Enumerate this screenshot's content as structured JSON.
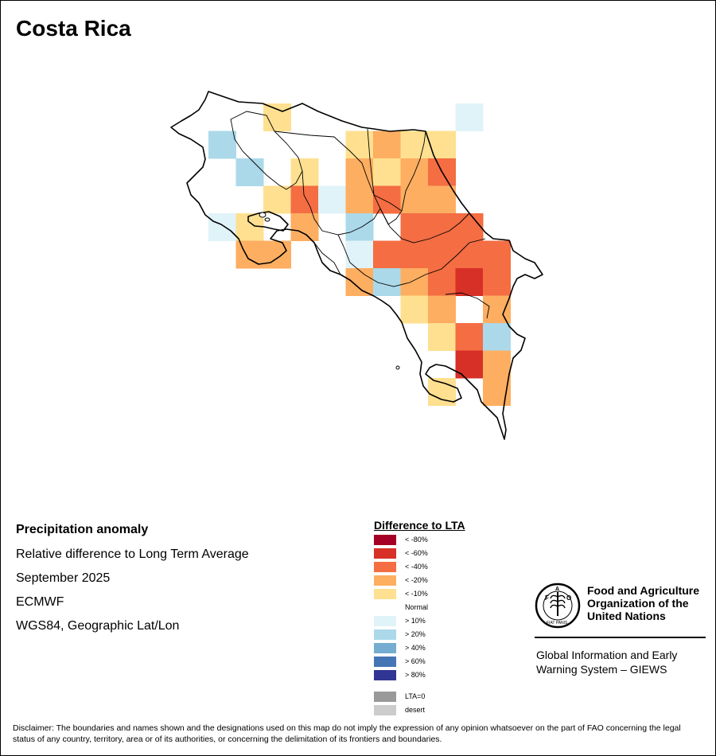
{
  "title": "Costa Rica",
  "info": {
    "heading": "Precipitation anomaly",
    "line1": "Relative difference to Long Term Average",
    "line2": "September 2025",
    "line3": "ECMWF",
    "line4": "WGS84, Geographic Lat/Lon"
  },
  "legend": {
    "title": "Difference to LTA",
    "items": [
      {
        "label": "< -80%",
        "color": "#a50026"
      },
      {
        "label": "< -60%",
        "color": "#d73027"
      },
      {
        "label": "< -40%",
        "color": "#f46d43"
      },
      {
        "label": "< -20%",
        "color": "#fdae61"
      },
      {
        "label": "< -10%",
        "color": "#fee090"
      },
      {
        "label": "Normal",
        "color": "#ffffff"
      },
      {
        "label": "> 10%",
        "color": "#e0f3f8"
      },
      {
        "label": "> 20%",
        "color": "#abd9e9"
      },
      {
        "label": "> 40%",
        "color": "#74add1"
      },
      {
        "label": "> 60%",
        "color": "#4575b4"
      },
      {
        "label": "> 80%",
        "color": "#313695"
      }
    ],
    "extra": [
      {
        "label": "LTA=0",
        "color": "#999999"
      },
      {
        "label": "desert",
        "color": "#cccccc"
      }
    ]
  },
  "fao": {
    "org_line1": "Food and Agriculture",
    "org_line2": "Organization of the",
    "org_line3": "United Nations",
    "logo_text": "FAO",
    "seal_text": "FIAT PANIS",
    "giews_line1": "Global Information and Early",
    "giews_line2": "Warning System – GIEWS"
  },
  "disclaimer": "Disclaimer: The boundaries and names shown and the designations used on this map do not imply the expression of any opinion whatsoever on the part of FAO concerning the legal status of any country, territory, area or of its authorities, or concerning the delimitation of its frontiers and boundaries.",
  "grid": {
    "cells": [
      [
        "p10",
        9,
        0
      ],
      [
        "n10",
        2,
        0
      ],
      [
        "p20",
        0,
        1
      ],
      [
        "n10",
        5,
        1
      ],
      [
        "n20",
        6,
        1
      ],
      [
        "n10",
        7,
        1
      ],
      [
        "n10",
        8,
        1
      ],
      [
        "p20",
        1,
        2
      ],
      [
        "n10",
        3,
        2
      ],
      [
        "n20",
        5,
        2
      ],
      [
        "n10",
        6,
        2
      ],
      [
        "n20",
        7,
        2
      ],
      [
        "n40",
        8,
        2
      ],
      [
        "n10",
        2,
        3
      ],
      [
        "n40",
        3,
        3
      ],
      [
        "p10",
        4,
        3
      ],
      [
        "n20",
        5,
        3
      ],
      [
        "n40",
        6,
        3
      ],
      [
        "n20",
        7,
        3
      ],
      [
        "n20",
        8,
        3
      ],
      [
        "p10",
        0,
        4
      ],
      [
        "n10",
        1,
        4
      ],
      [
        "n20",
        3,
        4
      ],
      [
        "p20",
        5,
        4
      ],
      [
        "n40",
        7,
        4
      ],
      [
        "n40",
        8,
        4
      ],
      [
        "n40",
        9,
        4
      ],
      [
        "n20",
        1,
        5
      ],
      [
        "n20",
        2,
        5
      ],
      [
        "p10",
        5,
        5
      ],
      [
        "n40",
        6,
        5
      ],
      [
        "n40",
        7,
        5
      ],
      [
        "n40",
        8,
        5
      ],
      [
        "n40",
        9,
        5
      ],
      [
        "n40",
        10,
        5
      ],
      [
        "n20",
        5,
        6
      ],
      [
        "p20",
        6,
        6
      ],
      [
        "n20",
        7,
        6
      ],
      [
        "n40",
        8,
        6
      ],
      [
        "n60",
        9,
        6
      ],
      [
        "n40",
        10,
        6
      ],
      [
        "n10",
        7,
        7
      ],
      [
        "n20",
        8,
        7
      ],
      [
        "n20",
        10,
        7
      ],
      [
        "n10",
        8,
        8
      ],
      [
        "n40",
        9,
        8
      ],
      [
        "p20",
        10,
        8
      ],
      [
        "n60",
        9,
        9
      ],
      [
        "n20",
        10,
        9
      ],
      [
        "n10",
        8,
        10
      ],
      [
        "n20",
        10,
        10
      ]
    ]
  }
}
